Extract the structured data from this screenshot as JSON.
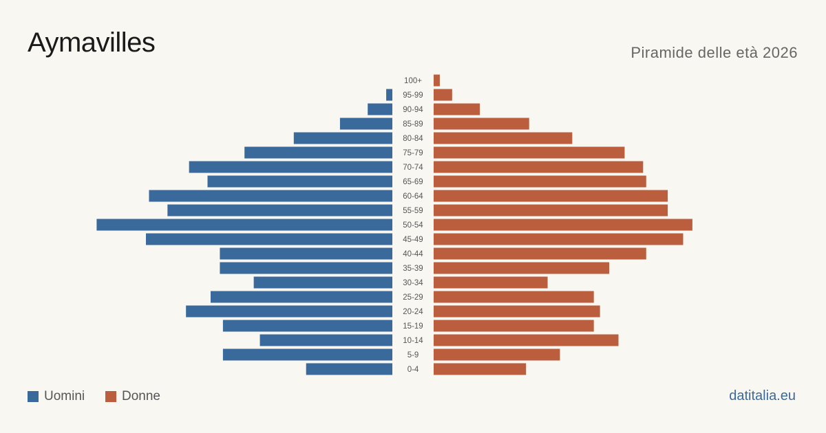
{
  "header": {
    "title": "Aymavilles",
    "subtitle": "Piramide delle età 2026"
  },
  "legend": {
    "men_label": "Uomini",
    "women_label": "Donne"
  },
  "footer": {
    "source": "datitalia.eu"
  },
  "colors": {
    "men": "#3a6a9c",
    "women": "#bb5e3d",
    "background": "#f9f7f2"
  },
  "chart_data": {
    "type": "bar",
    "orientation": "horizontal-pyramid",
    "categories": [
      "100+",
      "95-99",
      "90-94",
      "85-89",
      "80-84",
      "75-79",
      "70-74",
      "65-69",
      "60-64",
      "55-59",
      "50-54",
      "45-49",
      "40-44",
      "35-39",
      "30-34",
      "25-29",
      "20-24",
      "15-19",
      "10-14",
      "5-9",
      "0-4"
    ],
    "series": [
      {
        "name": "Uomini",
        "values": [
          0,
          1,
          4,
          8.5,
          16,
          24,
          33,
          30,
          39.5,
          36.5,
          48,
          40,
          28,
          28,
          22.5,
          29.5,
          33.5,
          27.5,
          21.5,
          27.5,
          14
        ]
      },
      {
        "name": "Donne",
        "values": [
          1,
          3,
          7.5,
          15.5,
          22.5,
          31,
          34,
          34.5,
          38,
          38,
          42,
          40.5,
          34.5,
          28.5,
          18.5,
          26,
          27,
          26,
          30,
          20.5,
          15
        ]
      }
    ],
    "legend_position": "bottom-left",
    "grid": false
  }
}
